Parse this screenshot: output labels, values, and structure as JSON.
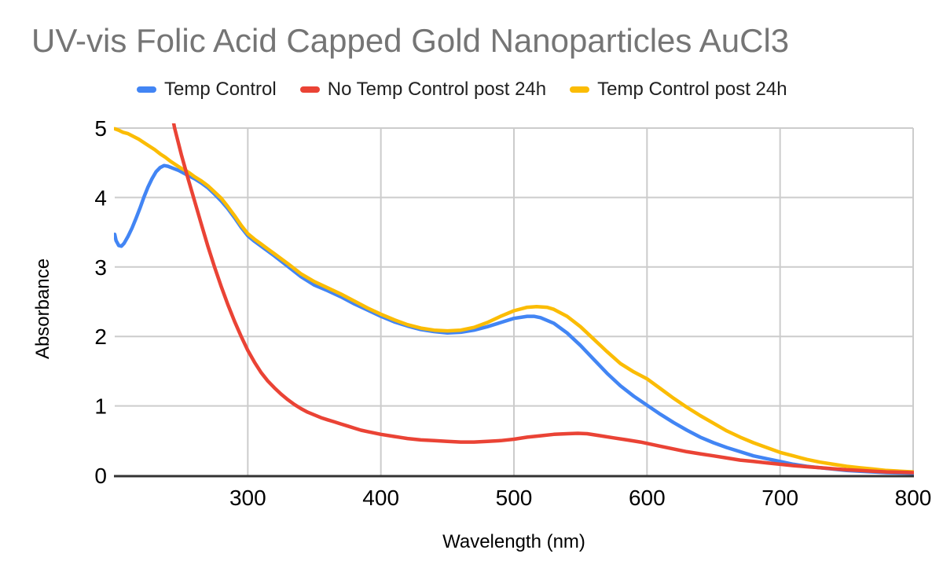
{
  "style": {
    "background": "#ffffff",
    "title_color": "#757575",
    "grid_color": "#cccccc",
    "axis_color": "#333333",
    "tick_color": "#000000",
    "legend_text_color": "#212121",
    "series_blue": "#4285F4",
    "series_red": "#EA4335",
    "series_yellow": "#FBBC04"
  },
  "chart_data": {
    "type": "line",
    "title": "UV-vis Folic Acid Capped Gold Nanoparticles AuCl3",
    "xlabel": "Wavelength (nm)",
    "ylabel": "Absorbance",
    "xlim": [
      200,
      800
    ],
    "ylim": [
      0,
      5
    ],
    "x_ticks": [
      300,
      400,
      500,
      600,
      700,
      800
    ],
    "y_ticks": [
      0,
      1,
      2,
      3,
      4,
      5
    ],
    "grid": true,
    "legend_position": "top",
    "series": [
      {
        "name": "Temp Control",
        "color": "#4285F4",
        "points": [
          [
            200,
            3.47
          ],
          [
            201,
            3.38
          ],
          [
            203,
            3.31
          ],
          [
            205,
            3.3
          ],
          [
            207,
            3.34
          ],
          [
            210,
            3.44
          ],
          [
            213,
            3.56
          ],
          [
            216,
            3.7
          ],
          [
            219,
            3.85
          ],
          [
            222,
            4.01
          ],
          [
            225,
            4.15
          ],
          [
            228,
            4.27
          ],
          [
            231,
            4.37
          ],
          [
            234,
            4.43
          ],
          [
            237,
            4.46
          ],
          [
            240,
            4.45
          ],
          [
            244,
            4.42
          ],
          [
            248,
            4.39
          ],
          [
            252,
            4.35
          ],
          [
            256,
            4.31
          ],
          [
            260,
            4.27
          ],
          [
            265,
            4.21
          ],
          [
            270,
            4.14
          ],
          [
            275,
            4.05
          ],
          [
            280,
            3.95
          ],
          [
            285,
            3.84
          ],
          [
            290,
            3.71
          ],
          [
            295,
            3.57
          ],
          [
            300,
            3.45
          ],
          [
            305,
            3.37
          ],
          [
            310,
            3.3
          ],
          [
            315,
            3.23
          ],
          [
            320,
            3.16
          ],
          [
            330,
            3.01
          ],
          [
            340,
            2.86
          ],
          [
            350,
            2.74
          ],
          [
            360,
            2.66
          ],
          [
            370,
            2.57
          ],
          [
            380,
            2.47
          ],
          [
            390,
            2.38
          ],
          [
            400,
            2.29
          ],
          [
            410,
            2.21
          ],
          [
            420,
            2.15
          ],
          [
            430,
            2.1
          ],
          [
            440,
            2.07
          ],
          [
            450,
            2.05
          ],
          [
            460,
            2.06
          ],
          [
            470,
            2.09
          ],
          [
            480,
            2.14
          ],
          [
            490,
            2.2
          ],
          [
            500,
            2.26
          ],
          [
            510,
            2.29
          ],
          [
            515,
            2.29
          ],
          [
            520,
            2.27
          ],
          [
            530,
            2.19
          ],
          [
            540,
            2.05
          ],
          [
            550,
            1.87
          ],
          [
            560,
            1.67
          ],
          [
            570,
            1.47
          ],
          [
            580,
            1.29
          ],
          [
            590,
            1.14
          ],
          [
            600,
            1.01
          ],
          [
            610,
            0.88
          ],
          [
            620,
            0.76
          ],
          [
            630,
            0.65
          ],
          [
            640,
            0.55
          ],
          [
            650,
            0.47
          ],
          [
            660,
            0.4
          ],
          [
            670,
            0.34
          ],
          [
            680,
            0.28
          ],
          [
            690,
            0.24
          ],
          [
            700,
            0.2
          ],
          [
            710,
            0.16
          ],
          [
            720,
            0.13
          ],
          [
            730,
            0.11
          ],
          [
            740,
            0.09
          ],
          [
            750,
            0.07
          ],
          [
            760,
            0.06
          ],
          [
            770,
            0.05
          ],
          [
            780,
            0.04
          ],
          [
            790,
            0.035
          ],
          [
            800,
            0.03
          ]
        ]
      },
      {
        "name": "Temp Control post 24h",
        "color": "#FBBC04",
        "points": [
          [
            200,
            4.99
          ],
          [
            203,
            4.97
          ],
          [
            206,
            4.94
          ],
          [
            210,
            4.92
          ],
          [
            214,
            4.88
          ],
          [
            218,
            4.84
          ],
          [
            222,
            4.79
          ],
          [
            226,
            4.74
          ],
          [
            230,
            4.69
          ],
          [
            234,
            4.63
          ],
          [
            238,
            4.58
          ],
          [
            242,
            4.52
          ],
          [
            246,
            4.47
          ],
          [
            250,
            4.42
          ],
          [
            255,
            4.37
          ],
          [
            260,
            4.3
          ],
          [
            265,
            4.24
          ],
          [
            270,
            4.17
          ],
          [
            275,
            4.08
          ],
          [
            280,
            3.99
          ],
          [
            285,
            3.87
          ],
          [
            290,
            3.74
          ],
          [
            295,
            3.6
          ],
          [
            300,
            3.48
          ],
          [
            305,
            3.4
          ],
          [
            310,
            3.33
          ],
          [
            315,
            3.26
          ],
          [
            320,
            3.19
          ],
          [
            330,
            3.05
          ],
          [
            340,
            2.9
          ],
          [
            350,
            2.79
          ],
          [
            360,
            2.7
          ],
          [
            370,
            2.61
          ],
          [
            380,
            2.51
          ],
          [
            390,
            2.41
          ],
          [
            400,
            2.32
          ],
          [
            410,
            2.24
          ],
          [
            420,
            2.17
          ],
          [
            430,
            2.12
          ],
          [
            440,
            2.09
          ],
          [
            450,
            2.08
          ],
          [
            460,
            2.09
          ],
          [
            470,
            2.13
          ],
          [
            480,
            2.2
          ],
          [
            490,
            2.29
          ],
          [
            500,
            2.37
          ],
          [
            510,
            2.42
          ],
          [
            517,
            2.43
          ],
          [
            525,
            2.42
          ],
          [
            530,
            2.39
          ],
          [
            540,
            2.29
          ],
          [
            550,
            2.14
          ],
          [
            560,
            1.96
          ],
          [
            570,
            1.78
          ],
          [
            580,
            1.61
          ],
          [
            590,
            1.49
          ],
          [
            600,
            1.39
          ],
          [
            610,
            1.25
          ],
          [
            620,
            1.11
          ],
          [
            630,
            0.98
          ],
          [
            640,
            0.86
          ],
          [
            650,
            0.75
          ],
          [
            660,
            0.64
          ],
          [
            670,
            0.55
          ],
          [
            680,
            0.47
          ],
          [
            690,
            0.4
          ],
          [
            700,
            0.33
          ],
          [
            710,
            0.28
          ],
          [
            720,
            0.23
          ],
          [
            730,
            0.19
          ],
          [
            740,
            0.16
          ],
          [
            750,
            0.13
          ],
          [
            760,
            0.11
          ],
          [
            770,
            0.09
          ],
          [
            780,
            0.07
          ],
          [
            790,
            0.06
          ],
          [
            800,
            0.05
          ]
        ]
      },
      {
        "name": "No Temp Control post 24h",
        "color": "#EA4335",
        "points": [
          [
            240,
            5.5
          ],
          [
            245,
            5.0
          ],
          [
            250,
            4.62
          ],
          [
            255,
            4.28
          ],
          [
            260,
            3.95
          ],
          [
            265,
            3.62
          ],
          [
            270,
            3.3
          ],
          [
            275,
            3.0
          ],
          [
            280,
            2.72
          ],
          [
            285,
            2.46
          ],
          [
            290,
            2.22
          ],
          [
            295,
            2.0
          ],
          [
            300,
            1.8
          ],
          [
            305,
            1.63
          ],
          [
            310,
            1.48
          ],
          [
            315,
            1.36
          ],
          [
            320,
            1.26
          ],
          [
            325,
            1.17
          ],
          [
            330,
            1.09
          ],
          [
            335,
            1.02
          ],
          [
            340,
            0.96
          ],
          [
            345,
            0.91
          ],
          [
            350,
            0.87
          ],
          [
            355,
            0.83
          ],
          [
            360,
            0.8
          ],
          [
            365,
            0.77
          ],
          [
            370,
            0.74
          ],
          [
            375,
            0.71
          ],
          [
            380,
            0.68
          ],
          [
            385,
            0.65
          ],
          [
            390,
            0.63
          ],
          [
            395,
            0.61
          ],
          [
            400,
            0.59
          ],
          [
            410,
            0.56
          ],
          [
            420,
            0.53
          ],
          [
            430,
            0.51
          ],
          [
            440,
            0.5
          ],
          [
            450,
            0.49
          ],
          [
            460,
            0.48
          ],
          [
            470,
            0.48
          ],
          [
            480,
            0.49
          ],
          [
            490,
            0.5
          ],
          [
            500,
            0.52
          ],
          [
            510,
            0.55
          ],
          [
            520,
            0.57
          ],
          [
            530,
            0.59
          ],
          [
            540,
            0.6
          ],
          [
            548,
            0.605
          ],
          [
            555,
            0.6
          ],
          [
            565,
            0.57
          ],
          [
            575,
            0.54
          ],
          [
            585,
            0.51
          ],
          [
            595,
            0.48
          ],
          [
            600,
            0.46
          ],
          [
            610,
            0.42
          ],
          [
            620,
            0.38
          ],
          [
            630,
            0.34
          ],
          [
            640,
            0.31
          ],
          [
            650,
            0.28
          ],
          [
            660,
            0.25
          ],
          [
            670,
            0.22
          ],
          [
            680,
            0.2
          ],
          [
            690,
            0.18
          ],
          [
            700,
            0.16
          ],
          [
            710,
            0.14
          ],
          [
            720,
            0.125
          ],
          [
            730,
            0.11
          ],
          [
            740,
            0.095
          ],
          [
            750,
            0.08
          ],
          [
            760,
            0.07
          ],
          [
            770,
            0.06
          ],
          [
            780,
            0.05
          ],
          [
            790,
            0.045
          ],
          [
            800,
            0.04
          ]
        ]
      }
    ],
    "legend_order": [
      "Temp Control",
      "No Temp Control post 24h",
      "Temp Control post 24h"
    ]
  }
}
